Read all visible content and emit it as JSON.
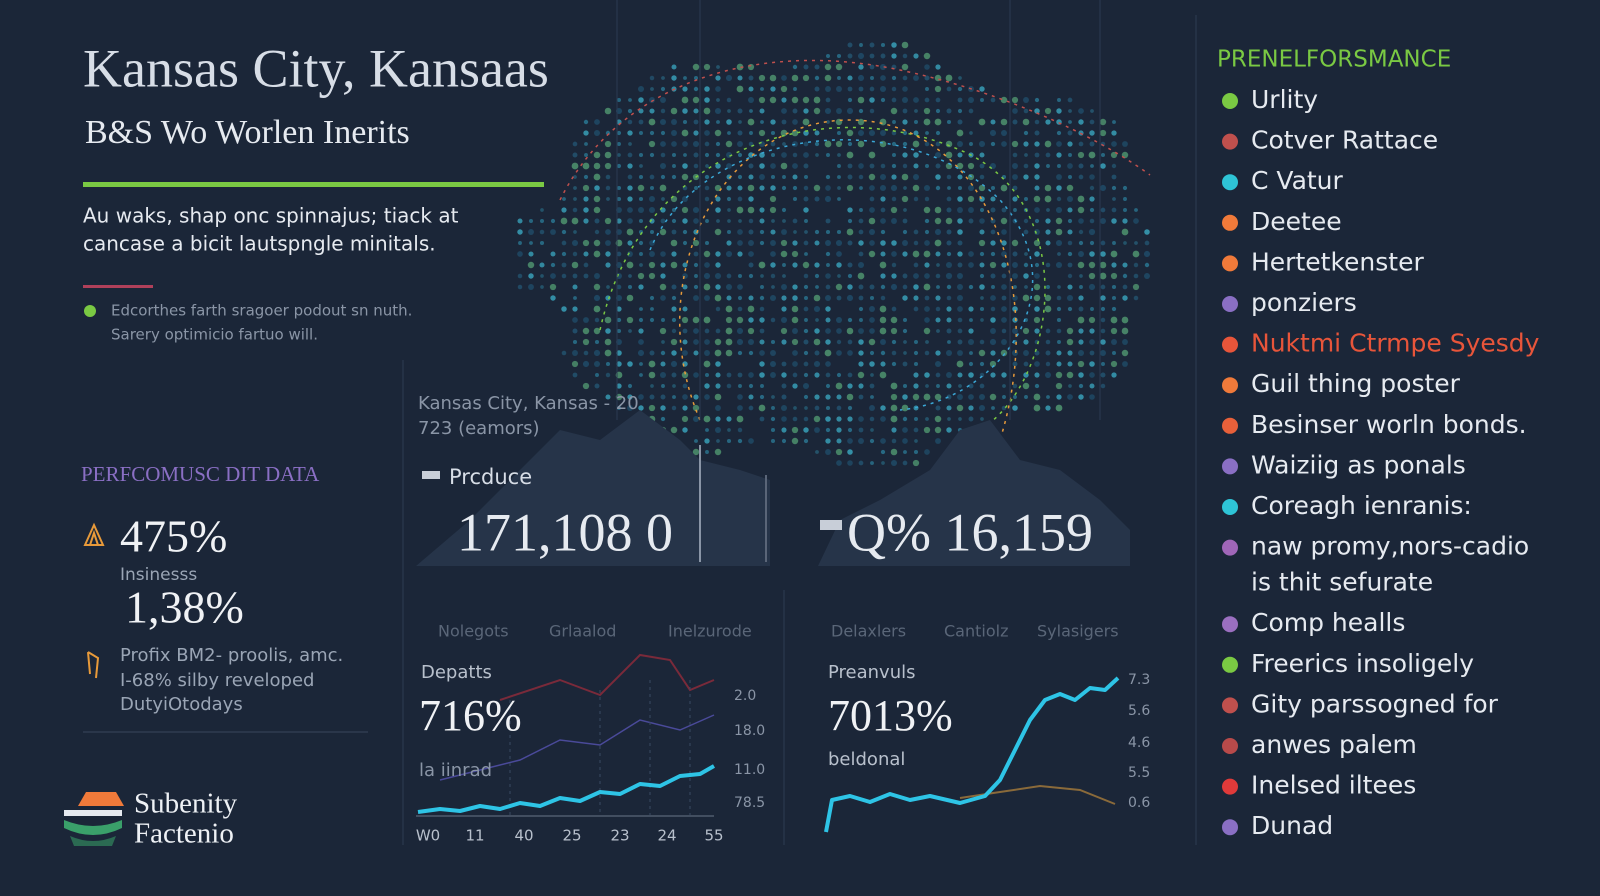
{
  "header": {
    "title": "Kansas City, Kansaas",
    "subtitle": "B&S Wo Worlen Inerits",
    "description": [
      "Au waks, shap onc spinnajus; tiack at",
      "cancase a bicit lautspngle  minitals."
    ],
    "notes": [
      "Edcorthes farth sragoer podout sn nuth.",
      "Sarery optimicio fartuo will."
    ]
  },
  "left_panel": {
    "section_title": "PERFCOMUSC DIT DATA",
    "stat_1": "475%",
    "stat_1_label": "Insinesss",
    "stat_2": "1,38%",
    "notes": [
      "Profix BM2- proolis, amc.",
      "I-68% silby reveloped",
      "DutyiOtodays"
    ]
  },
  "logo": {
    "lines": [
      "Subenity",
      "Factenio"
    ]
  },
  "center": {
    "map_caption": [
      "Kansas City, Kansas - 20",
      "723 (eamors)"
    ],
    "panel_label": "Prcduce",
    "big_number_1": "171,108 0",
    "big_number_2": "Q% 16,159"
  },
  "chart_1": {
    "legend": [
      "Nolegots",
      "Grlaalod",
      "Inelzurode"
    ],
    "label": "Depatts",
    "value": "716%",
    "sublabel": "la iinrad",
    "x_labels": [
      "W0",
      "11",
      "40",
      "25",
      "23",
      "24",
      "55"
    ],
    "y_labels": [
      "2.0",
      "18.0",
      "11.0",
      "78.5"
    ]
  },
  "chart_2": {
    "legend": [
      "Delaxlers",
      "Cantiolz",
      "Sylasigers"
    ],
    "label": "Preanvuls",
    "value": "7013%",
    "sublabel": "beldonal",
    "y_labels": [
      "7.3",
      "5.6",
      "4.6",
      "5.5",
      "0.6"
    ]
  },
  "legend": {
    "title": "PRENELFORSMANCE",
    "items": [
      {
        "lines": [
          "Urlity"
        ],
        "color": "#7ac943"
      },
      {
        "lines": [
          "Cotver Rattace"
        ],
        "color": "#c0504d"
      },
      {
        "lines": [
          "C Vatur"
        ],
        "color": "#2ec4d6"
      },
      {
        "lines": [
          "Deetee"
        ],
        "color": "#f07a3a"
      },
      {
        "lines": [
          "Hertetkenster"
        ],
        "color": "#f07a3a"
      },
      {
        "lines": [
          "ponziers"
        ],
        "color": "#8a6fc4"
      },
      {
        "lines": [
          "Nuktmi Ctrmpe Syesdy"
        ],
        "color": "#e8553a",
        "text_color": "#e8553a"
      },
      {
        "lines": [
          "Guil thing poster"
        ],
        "color": "#f07a3a"
      },
      {
        "lines": [
          "Besinser worln bonds."
        ],
        "color": "#e8603a"
      },
      {
        "lines": [
          "Waiziig as ponals"
        ],
        "color": "#8a6fc4"
      },
      {
        "lines": [
          "Coreagh ienranis:"
        ],
        "color": "#2ec4d6"
      },
      {
        "lines": [
          "naw promy,nors-cadio",
          "is thit sefurate"
        ],
        "color": "#a066b8"
      },
      {
        "lines": [
          "Comp healls"
        ],
        "color": "#9b6fc0"
      },
      {
        "lines": [
          "Freerics insoligely"
        ],
        "color": "#7ac943"
      },
      {
        "lines": [
          "Gity parssogned for"
        ],
        "color": "#c0504d"
      },
      {
        "lines": [
          "anwes palem"
        ],
        "color": "#b84a4a"
      },
      {
        "lines": [
          "Inelsed iltees"
        ],
        "color": "#e03a3a"
      },
      {
        "lines": [
          "Dunad"
        ],
        "color": "#8a6fc4"
      }
    ]
  }
}
